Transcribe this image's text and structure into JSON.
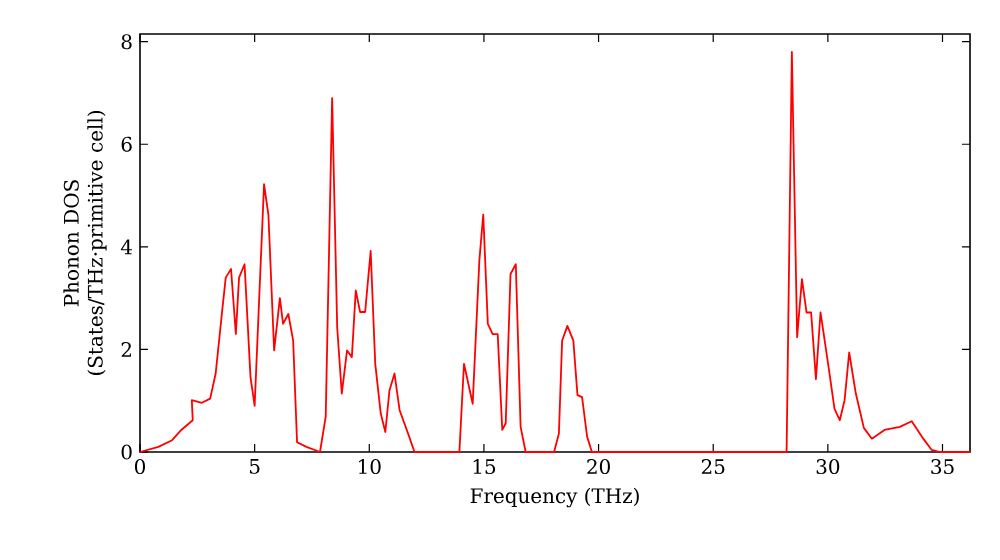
{
  "chart_data": {
    "type": "line",
    "xlabel": "Frequency (THz)",
    "ylabel": "Phonon DOS (States/THz·primitive cell)",
    "xlim": [
      0,
      36.2
    ],
    "ylim": [
      0,
      8.15
    ],
    "xticks": [
      0,
      5,
      10,
      15,
      20,
      25,
      30,
      35
    ],
    "yticks": [
      0,
      2,
      4,
      6,
      8
    ],
    "grid": false,
    "marker": "none",
    "line_style": "solid",
    "series": [
      {
        "color": "#ff0000",
        "x": [
          0,
          0.8,
          1.4,
          1.8,
          2.3,
          2.26,
          2.7,
          3.06,
          3.3,
          3.6,
          3.74,
          3.97,
          4.18,
          4.32,
          4.56,
          4.82,
          5.0,
          5.41,
          5.6,
          5.85,
          6.1,
          6.24,
          6.47,
          6.68,
          6.85,
          7.26,
          7.85,
          8.1,
          8.38,
          8.6,
          8.8,
          9.03,
          9.24,
          9.41,
          9.6,
          9.82,
          10.06,
          10.26,
          10.5,
          10.7,
          10.88,
          11.1,
          11.32,
          11.74,
          11.97,
          13.93,
          14.13,
          14.51,
          14.8,
          14.97,
          15.17,
          15.38,
          15.6,
          15.8,
          15.95,
          16.16,
          16.39,
          16.6,
          16.82,
          18.06,
          18.27,
          18.41,
          18.64,
          18.9,
          19.08,
          19.28,
          19.5,
          19.71,
          28.2,
          28.43,
          28.66,
          28.87,
          29.07,
          29.27,
          29.48,
          29.68,
          30.03,
          30.29,
          30.52,
          30.73,
          30.93,
          31.22,
          31.57,
          31.92,
          32.47,
          33.14,
          33.66,
          34.16,
          34.53,
          34.88,
          36.2
        ],
        "values": [
          0,
          0.1,
          0.23,
          0.43,
          0.62,
          1.01,
          0.96,
          1.04,
          1.53,
          2.82,
          3.4,
          3.57,
          2.3,
          3.4,
          3.66,
          1.46,
          0.9,
          5.22,
          4.63,
          1.98,
          3.0,
          2.5,
          2.69,
          2.17,
          0.19,
          0.1,
          0,
          0.69,
          6.9,
          2.43,
          1.14,
          1.98,
          1.85,
          3.15,
          2.73,
          2.73,
          3.92,
          1.72,
          0.75,
          0.39,
          1.2,
          1.53,
          0.82,
          0.3,
          0,
          0,
          1.72,
          0.94,
          3.73,
          4.63,
          2.5,
          2.3,
          2.3,
          0.43,
          0.56,
          3.47,
          3.66,
          0.49,
          0,
          0,
          0.36,
          2.17,
          2.46,
          2.17,
          1.11,
          1.07,
          0.3,
          0,
          0,
          7.8,
          2.24,
          3.37,
          2.72,
          2.72,
          1.42,
          2.72,
          1.66,
          0.84,
          0.62,
          1.01,
          1.94,
          1.14,
          0.47,
          0.26,
          0.43,
          0.49,
          0.6,
          0.26,
          0.04,
          0,
          0
        ]
      }
    ]
  }
}
